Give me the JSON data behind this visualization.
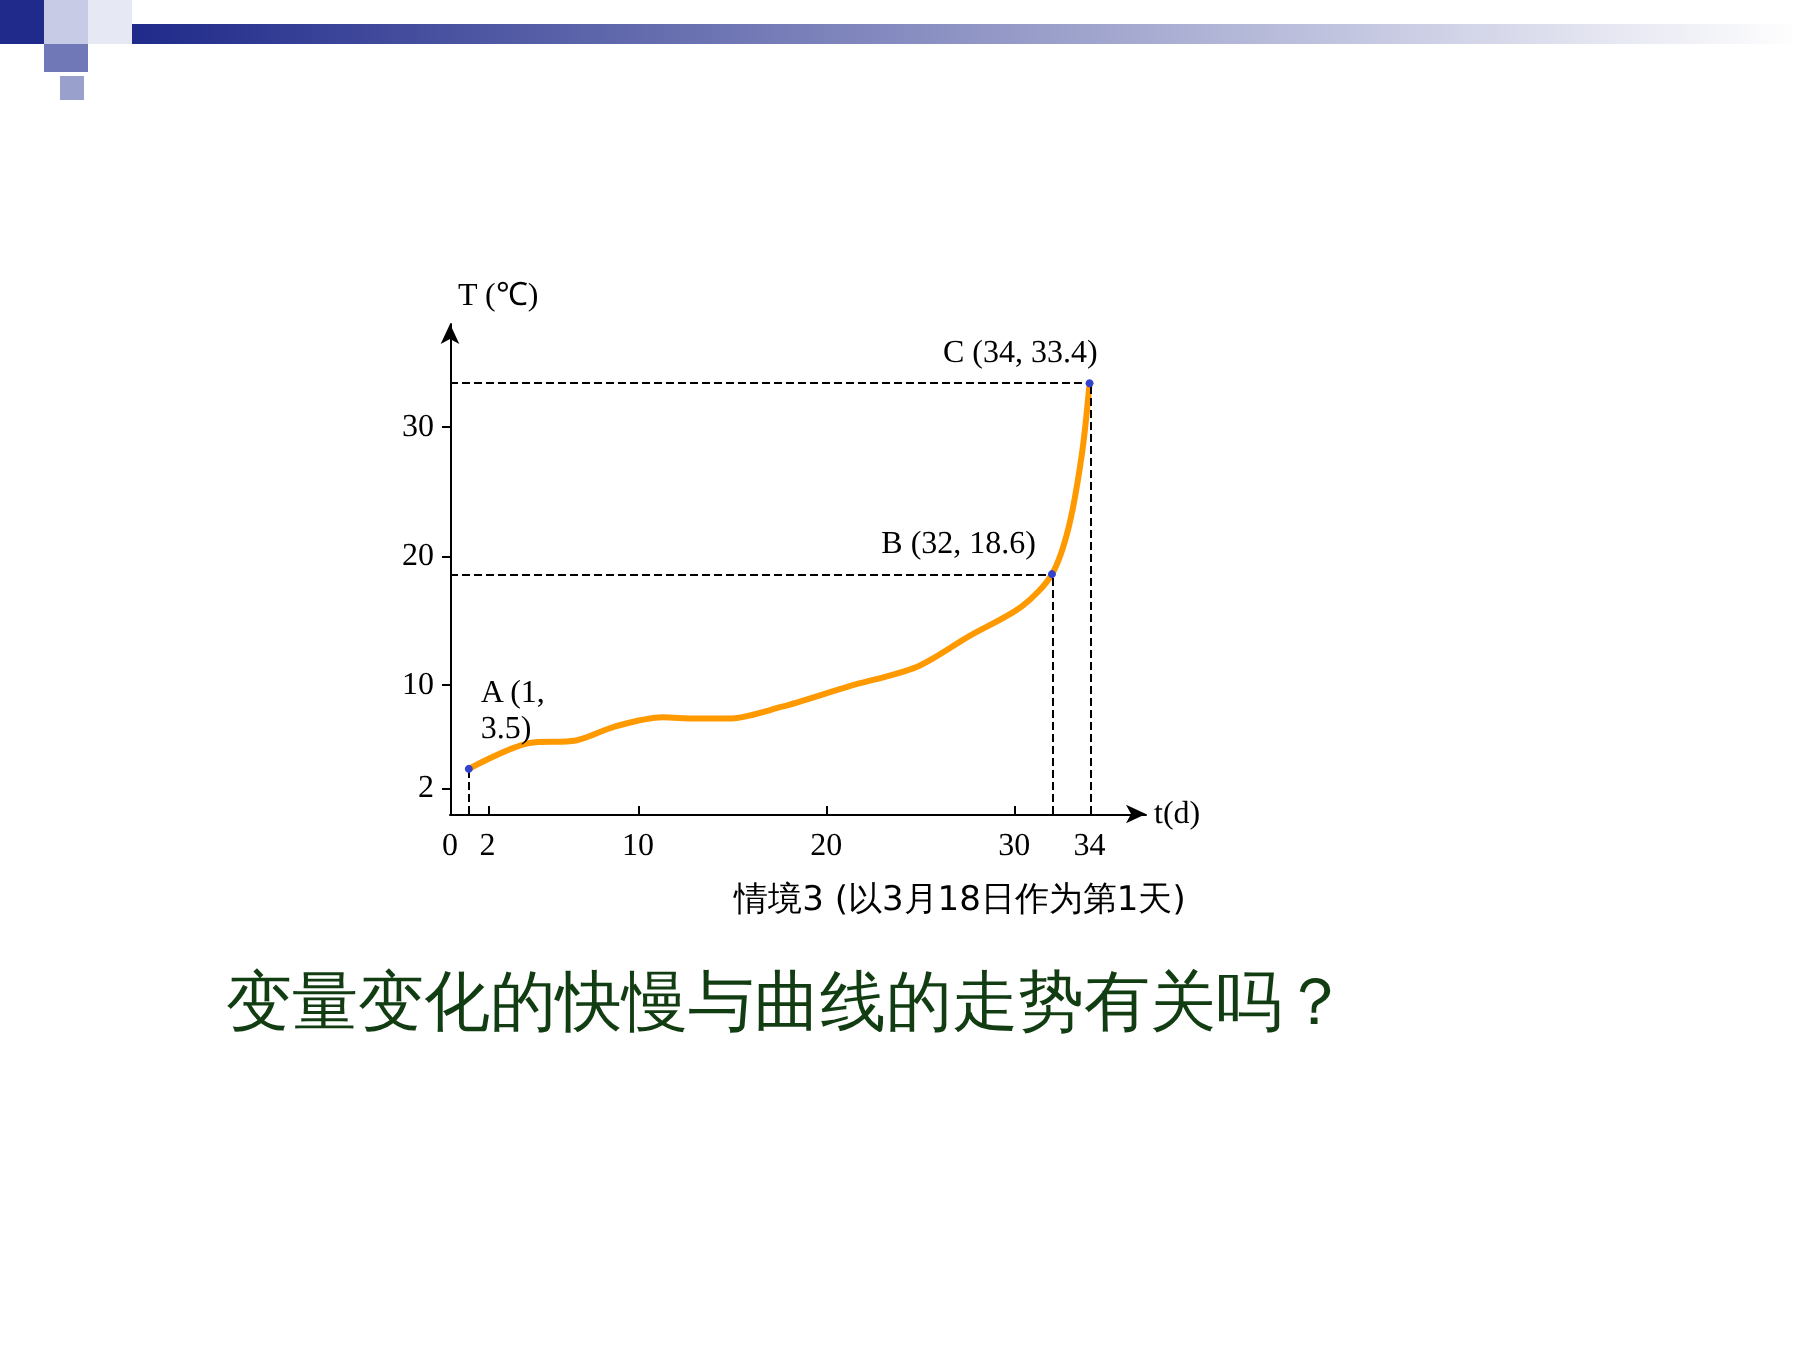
{
  "chart_data": {
    "type": "line",
    "xlabel": "t(d)",
    "ylabel": "T (℃)",
    "x": [
      1,
      4.2,
      6.7,
      8.8,
      11.3,
      13,
      14.8,
      17.6,
      21.2,
      24.8,
      27.6,
      30.4,
      32,
      32.9,
      33.6,
      34
    ],
    "series": [
      {
        "color": "#ff9900",
        "values": [
          3.5,
          5.5,
          5.7,
          6.8,
          7.5,
          7.4,
          7.4,
          8.3,
          9.9,
          11.4,
          13.8,
          16.1,
          18.6,
          22.3,
          28,
          33.4
        ]
      }
    ],
    "xlim": [
      0,
      37
    ],
    "ylim": [
      0,
      38
    ],
    "xticks": [
      0,
      2,
      10,
      20,
      30,
      34
    ],
    "yticks": [
      2,
      10,
      20,
      30
    ],
    "ref_lines": [
      {
        "axis": "x",
        "value": 1,
        "color": "#000000",
        "line_style": "dashed"
      },
      {
        "axis": "x",
        "value": 32,
        "color": "#000000",
        "line_style": "dashed"
      },
      {
        "axis": "x",
        "value": 34,
        "color": "#000000",
        "line_style": "dashed"
      },
      {
        "axis": "y",
        "value": 18.6,
        "color": "#000000",
        "line_style": "dashed"
      },
      {
        "axis": "y",
        "value": 33.4,
        "color": "#000000",
        "line_style": "dashed"
      }
    ],
    "annotations": [
      {
        "text": "A (1, 3.5)",
        "x": 1,
        "y": 3.5
      },
      {
        "text": "B (32, 18.6)",
        "x": 32,
        "y": 18.6
      },
      {
        "text": "C (34, 33.4)",
        "x": 34,
        "y": 33.4
      },
      "情境3 (以3月18日作为第1天)",
      "变量变化的快慢与曲线的走势有关吗？"
    ],
    "grid": false
  }
}
